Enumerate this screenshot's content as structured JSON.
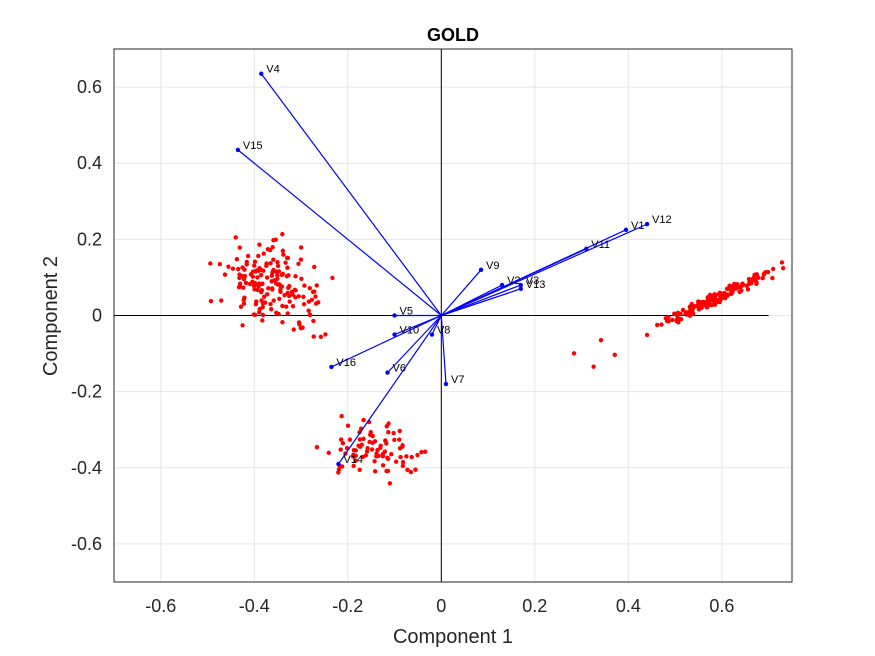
{
  "chart_data": {
    "type": "scatter",
    "title": "GOLD",
    "xlabel": "Component 1",
    "ylabel": "Component 2",
    "xlim": [
      -0.7,
      0.75
    ],
    "ylim": [
      -0.7,
      0.7
    ],
    "xticks": [
      -0.6,
      -0.4,
      -0.2,
      0,
      0.2,
      0.4,
      0.6
    ],
    "yticks": [
      -0.6,
      -0.4,
      -0.2,
      0,
      0.2,
      0.4,
      0.6
    ],
    "xtick_labels": [
      "-0.6",
      "-0.4",
      "-0.2",
      "0",
      "0.2",
      "0.4",
      "0.6"
    ],
    "ytick_labels": [
      "-0.6",
      "-0.4",
      "-0.2",
      "0",
      "0.2",
      "0.4",
      "0.6"
    ],
    "grid": true,
    "colors": {
      "vectors": "#0000ff",
      "points": "#ff0000"
    },
    "vectors": [
      {
        "name": "V1",
        "x": 0.395,
        "y": 0.225
      },
      {
        "name": "V2",
        "x": 0.13,
        "y": 0.08
      },
      {
        "name": "V3",
        "x": 0.17,
        "y": 0.08
      },
      {
        "name": "V4",
        "x": -0.385,
        "y": 0.635
      },
      {
        "name": "V5",
        "x": -0.1,
        "y": 0.0
      },
      {
        "name": "V6",
        "x": -0.115,
        "y": -0.15
      },
      {
        "name": "V7",
        "x": 0.01,
        "y": -0.18
      },
      {
        "name": "V8",
        "x": -0.02,
        "y": -0.05
      },
      {
        "name": "V9",
        "x": 0.085,
        "y": 0.12
      },
      {
        "name": "V10",
        "x": -0.1,
        "y": -0.05
      },
      {
        "name": "V11",
        "x": 0.31,
        "y": 0.175
      },
      {
        "name": "V12",
        "x": 0.44,
        "y": 0.24
      },
      {
        "name": "V13",
        "x": 0.17,
        "y": 0.07
      },
      {
        "name": "V14",
        "x": -0.22,
        "y": -0.39
      },
      {
        "name": "V15",
        "x": -0.435,
        "y": 0.435
      },
      {
        "name": "V16",
        "x": -0.235,
        "y": -0.135
      }
    ],
    "scatter_clusters": [
      {
        "center": [
          -0.375,
          0.09
        ],
        "spread": [
          0.045,
          0.05
        ],
        "count": 150
      },
      {
        "center": [
          -0.26,
          0.0
        ],
        "spread": [
          0.025,
          0.04
        ],
        "count": 22
      },
      {
        "center": [
          -0.14,
          -0.355
        ],
        "spread": [
          0.05,
          0.035
        ],
        "count": 85
      },
      {
        "center": [
          0.58,
          0.04
        ],
        "spread": [
          0.06,
          0.035
        ],
        "count": 150,
        "linear": true
      },
      {
        "center": [
          0.34,
          -0.1
        ],
        "spread": [
          0.04,
          0.025
        ],
        "count": 4
      }
    ]
  }
}
